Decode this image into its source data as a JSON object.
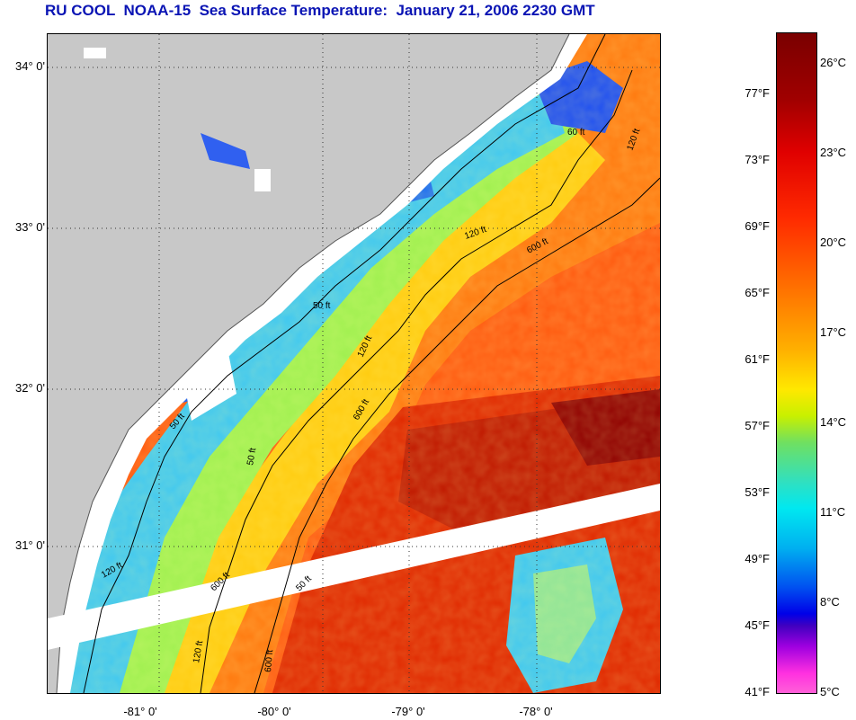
{
  "title": "RU COOL  NOAA-15  Sea Surface Temperature:  January 21, 2006 2230 GMT",
  "map": {
    "lat_labels": [
      "34° 0'",
      "33° 0'",
      "32° 0'",
      "31° 0'"
    ],
    "lon_labels": [
      "-81° 0'",
      "-80° 0'",
      "-79° 0'",
      "-78° 0'"
    ],
    "contour_labels": [
      "50 ft",
      "120 ft",
      "600 ft",
      "50 ft",
      "120 ft",
      "600 ft",
      "60 ft",
      "120 ft",
      "50 ft",
      "120 ft",
      "600 ft",
      "50 ft",
      "120 ft",
      "600 ft"
    ],
    "colors": {
      "land": "#c8c8c8",
      "no_data": "#ffffff",
      "warm": "#e02000",
      "cool": "#40c0f0"
    }
  },
  "colorbar": {
    "fahrenheit": [
      "77°F",
      "73°F",
      "69°F",
      "65°F",
      "61°F",
      "57°F",
      "53°F",
      "49°F",
      "45°F",
      "41°F"
    ],
    "celsius": [
      "26°C",
      "23°C",
      "20°C",
      "17°C",
      "14°C",
      "11°C",
      "8°C",
      "5°C"
    ]
  }
}
